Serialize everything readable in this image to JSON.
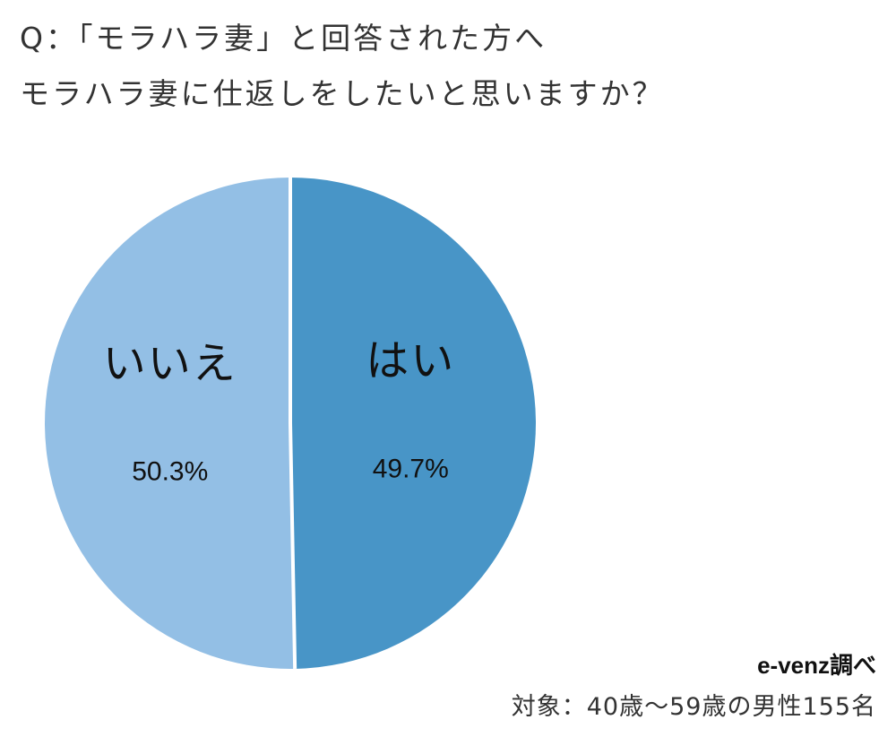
{
  "chart_data": {
    "type": "pie",
    "title": [
      "Q：「モラハラ妻」と回答された方へ",
      "モラハラ妻に仕返しをしたいと思いますか？"
    ],
    "slices": [
      {
        "label": "はい",
        "value": 49.7,
        "display": "49.7%",
        "color": "#4895c7"
      },
      {
        "label": "いいえ",
        "value": 50.3,
        "display": "50.3%",
        "color": "#93bfe5"
      }
    ],
    "start": "12 o'clock",
    "direction": "clockwise",
    "labels_inside": true,
    "legend": "none"
  },
  "source": "e-venz調べ",
  "sample": "対象：40歳〜59歳の男性155名",
  "colors": {
    "separator": "#ffffff",
    "text": "#111111"
  }
}
